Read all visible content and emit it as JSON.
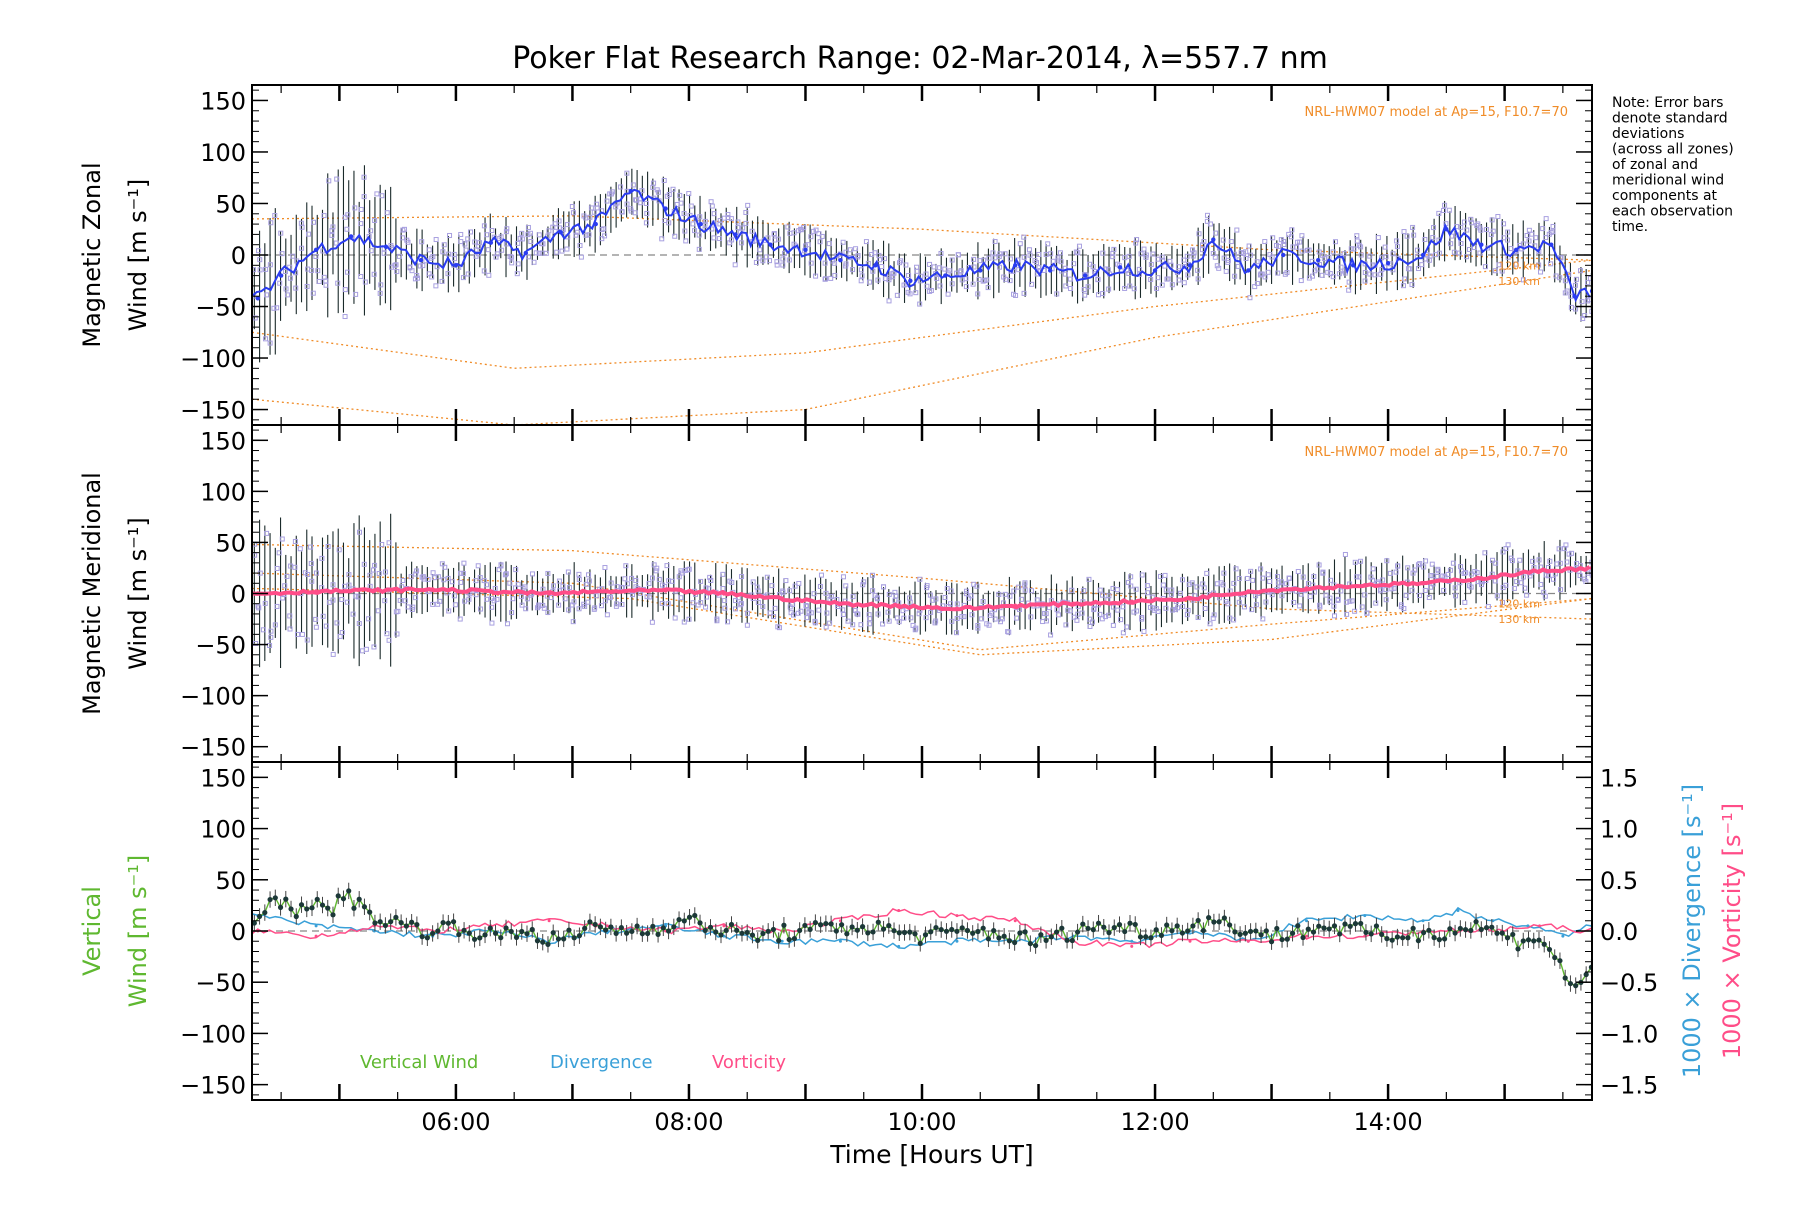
{
  "title": "Poker Flat Research Range: 02-Mar-2014, λ=557.7 nm",
  "note": "Note: Error bars denote standard deviations (across all zones) of zonal and meridional wind components at each observation time.",
  "note_lines": [
    "Note: Error bars",
    "denote standard",
    "deviations",
    "(across all zones)",
    "of zonal and",
    "meridional wind",
    "components at",
    "each observation",
    "time."
  ],
  "x_axis": {
    "label": "Time [Hours UT]",
    "range_hours": [
      4.25,
      15.75
    ],
    "ticks": [
      {
        "value": 6,
        "label": "06:00"
      },
      {
        "value": 8,
        "label": "08:00"
      },
      {
        "value": 10,
        "label": "10:00"
      },
      {
        "value": 12,
        "label": "12:00"
      },
      {
        "value": 14,
        "label": "14:00"
      }
    ]
  },
  "colors": {
    "zonal_mean": "#2a3cf0",
    "meridional_mean": "#ff4d88",
    "vertical_wind": "#5fb830",
    "divergence": "#3aa0d8",
    "vorticity": "#ff4d88",
    "model": "#f08c28",
    "zone_points": "#a8a0e0",
    "error_bars": "#1a2a2a"
  },
  "chart_data": [
    {
      "type": "line",
      "panel": "zonal",
      "ylabel_line1": "Magnetic Zonal",
      "ylabel_line2": "Wind [m s⁻¹]",
      "ylim": [
        -165,
        165
      ],
      "yticks": [
        -150,
        -100,
        -50,
        0,
        50,
        100,
        150
      ],
      "model_label": "NRL-HWM07 model at Ap=15, F10.7=70",
      "altitude_labels": [
        "120 km",
        "130 km"
      ],
      "series": [
        {
          "name": "Zonal wind",
          "x": [
            4.3,
            4.5,
            4.8,
            5.1,
            5.4,
            5.7,
            6.0,
            6.3,
            6.6,
            6.9,
            7.2,
            7.5,
            7.8,
            8.1,
            8.4,
            8.7,
            9.0,
            9.3,
            9.6,
            9.9,
            10.2,
            10.5,
            10.8,
            11.1,
            11.4,
            11.7,
            12.0,
            12.3,
            12.5,
            12.8,
            13.1,
            13.4,
            13.7,
            14.0,
            14.3,
            14.5,
            14.8,
            15.1,
            15.4,
            15.6,
            15.75
          ],
          "values": [
            -42,
            -20,
            5,
            18,
            8,
            -5,
            -10,
            12,
            2,
            22,
            30,
            62,
            45,
            30,
            20,
            10,
            5,
            -5,
            -10,
            -25,
            -20,
            -15,
            -10,
            -15,
            -20,
            -12,
            -15,
            -10,
            15,
            -15,
            0,
            -5,
            -10,
            -8,
            0,
            25,
            10,
            5,
            10,
            -40,
            -35
          ]
        }
      ]
    },
    {
      "type": "line",
      "panel": "meridional",
      "ylabel_line1": "Magnetic Meridional",
      "ylabel_line2": "Wind [m s⁻¹]",
      "ylim": [
        -165,
        165
      ],
      "yticks": [
        -150,
        -100,
        -50,
        0,
        50,
        100,
        150
      ],
      "model_label": "NRL-HWM07 model at Ap=15, F10.7=70",
      "altitude_labels": [
        "120 km",
        "130 km"
      ],
      "series": [
        {
          "name": "Meridional wind",
          "x": [
            4.3,
            4.8,
            5.3,
            5.8,
            6.3,
            6.8,
            7.3,
            7.8,
            8.3,
            8.8,
            9.3,
            9.8,
            10.3,
            10.8,
            11.3,
            11.8,
            12.3,
            12.8,
            13.3,
            13.8,
            14.3,
            14.8,
            15.3,
            15.75
          ],
          "values": [
            0,
            2,
            3,
            4,
            2,
            0,
            2,
            3,
            0,
            -5,
            -10,
            -12,
            -15,
            -12,
            -10,
            -8,
            -5,
            2,
            5,
            8,
            10,
            15,
            22,
            25
          ]
        }
      ]
    },
    {
      "type": "line",
      "panel": "vertical",
      "ylabel_line1": "Vertical",
      "ylabel_line2": "Wind [m s⁻¹]",
      "ylim": [
        -165,
        165
      ],
      "yticks": [
        -150,
        -100,
        -50,
        0,
        50,
        100,
        150
      ],
      "right_axis": {
        "ylim": [
          -1.65,
          1.65
        ],
        "ticks": [
          -1.5,
          -1.0,
          -0.5,
          0.0,
          0.5,
          1.0,
          1.5
        ],
        "tick_labels": [
          "−1.5",
          "−1.0",
          "−0.5",
          "0.0",
          "0.5",
          "1.0",
          "1.5"
        ],
        "label_divergence": "1000 × Divergence [s⁻¹]",
        "label_vorticity": "1000 × Vorticity [s⁻¹]"
      },
      "legend": [
        "Vertical Wind",
        "Divergence",
        "Vorticity"
      ],
      "series": [
        {
          "name": "Vertical Wind",
          "axis": "left",
          "x": [
            4.3,
            4.45,
            4.6,
            4.75,
            4.9,
            5.05,
            5.2,
            5.4,
            5.6,
            5.8,
            6.0,
            6.3,
            6.6,
            6.9,
            7.2,
            7.5,
            8.0,
            8.5,
            9.0,
            9.5,
            10.0,
            10.5,
            11.0,
            11.5,
            12.0,
            12.5,
            13.0,
            13.5,
            14.0,
            14.5,
            14.8,
            15.1,
            15.3,
            15.45,
            15.6,
            15.75
          ],
          "values": [
            5,
            35,
            20,
            30,
            15,
            40,
            20,
            10,
            5,
            0,
            5,
            -5,
            0,
            -10,
            5,
            0,
            10,
            -5,
            0,
            5,
            -5,
            0,
            -10,
            5,
            0,
            10,
            -5,
            5,
            -5,
            0,
            5,
            -10,
            -5,
            -30,
            -55,
            -40
          ]
        }
      ],
      "series_right": [
        {
          "name": "Divergence",
          "axis": "right",
          "x": [
            4.3,
            4.8,
            5.3,
            5.8,
            6.3,
            6.8,
            7.3,
            7.8,
            8.3,
            8.8,
            9.3,
            9.8,
            10.3,
            10.8,
            11.3,
            11.8,
            12.3,
            12.8,
            13.3,
            13.8,
            14.3,
            14.6,
            14.9,
            15.2,
            15.5,
            15.75
          ],
          "values": [
            0.15,
            0.05,
            0.0,
            -0.05,
            0.0,
            -0.1,
            0.0,
            0.05,
            -0.05,
            -0.1,
            -0.1,
            -0.15,
            -0.1,
            -0.1,
            -0.05,
            -0.1,
            0.0,
            -0.1,
            0.1,
            0.15,
            0.1,
            0.2,
            0.1,
            0.05,
            -0.05,
            0.05
          ]
        },
        {
          "name": "Vorticity",
          "axis": "right",
          "x": [
            4.3,
            4.8,
            5.3,
            5.8,
            6.3,
            6.8,
            7.3,
            7.8,
            8.3,
            8.8,
            9.3,
            9.8,
            10.3,
            10.8,
            11.3,
            11.8,
            12.3,
            12.8,
            13.3,
            13.8,
            14.3,
            14.8,
            15.3,
            15.75
          ],
          "values": [
            0.0,
            -0.05,
            0.05,
            0.0,
            0.05,
            0.1,
            0.05,
            0.0,
            0.05,
            0.0,
            0.1,
            0.2,
            0.15,
            0.1,
            -0.1,
            -0.15,
            -0.1,
            -0.1,
            -0.05,
            -0.05,
            0.0,
            0.0,
            0.05,
            0.0
          ]
        }
      ]
    }
  ]
}
